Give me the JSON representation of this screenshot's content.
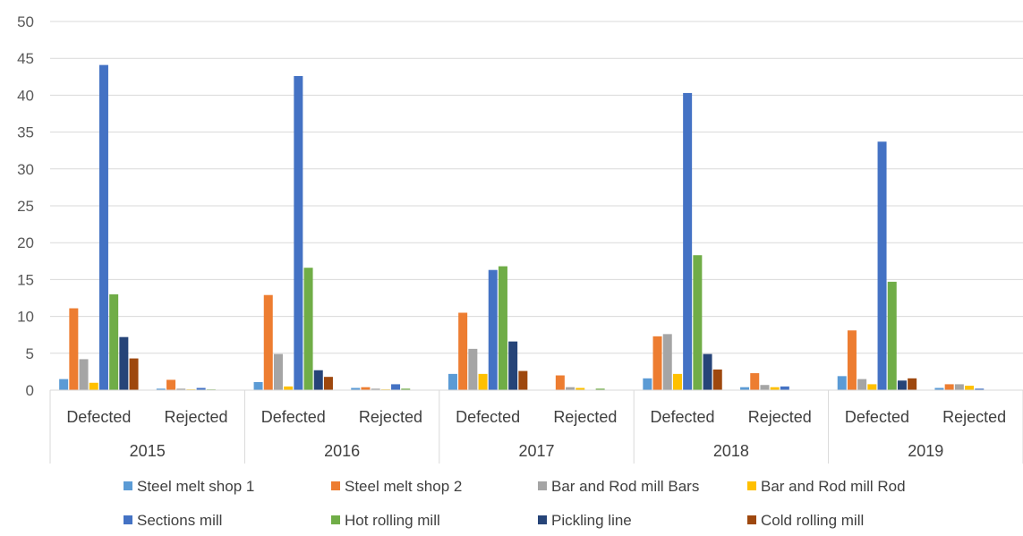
{
  "chart_data": {
    "type": "bar",
    "title": "",
    "xlabel": "",
    "ylabel": "",
    "ylim": [
      0,
      50
    ],
    "yticks": [
      "0",
      "5",
      "10",
      "15",
      "20",
      "25",
      "30",
      "35",
      "40",
      "45",
      "50"
    ],
    "grid": true,
    "legend_position": "bottom",
    "groups": [
      "2015",
      "2016",
      "2017",
      "2018",
      "2019"
    ],
    "subcategories": [
      "Defected",
      "Rejected"
    ],
    "categories": [
      "2015 Defected",
      "2015 Rejected",
      "2016 Defected",
      "2016 Rejected",
      "2017 Defected",
      "2017 Rejected",
      "2018 Defected",
      "2018 Rejected",
      "2019 Defected",
      "2019 Rejected"
    ],
    "series": [
      {
        "name": "Steel melt shop 1",
        "color": "#5B9BD5",
        "values": [
          1.5,
          0.2,
          1.1,
          0.3,
          2.2,
          0.0,
          1.6,
          0.4,
          1.9,
          0.3
        ]
      },
      {
        "name": "Steel melt shop 2",
        "color": "#ED7D31",
        "values": [
          11.1,
          1.4,
          12.9,
          0.4,
          10.5,
          2.0,
          7.3,
          2.3,
          8.1,
          0.8
        ]
      },
      {
        "name": "Bar and Rod mill Bars",
        "color": "#A5A5A5",
        "values": [
          4.2,
          0.2,
          4.9,
          0.2,
          5.6,
          0.4,
          7.6,
          0.7,
          1.5,
          0.8
        ]
      },
      {
        "name": "Bar and Rod mill Rod",
        "color": "#FFC000",
        "values": [
          1.0,
          0.1,
          0.5,
          0.1,
          2.2,
          0.3,
          2.2,
          0.4,
          0.8,
          0.6
        ]
      },
      {
        "name": "Sections mill",
        "color": "#4472C4",
        "values": [
          44.1,
          0.3,
          42.6,
          0.8,
          16.3,
          0.0,
          40.3,
          0.5,
          33.7,
          0.2
        ]
      },
      {
        "name": "Hot rolling mill",
        "color": "#70AD47",
        "values": [
          13.0,
          0.1,
          16.6,
          0.2,
          16.8,
          0.2,
          18.3,
          0.0,
          14.7,
          0.0
        ]
      },
      {
        "name": "Pickling line",
        "color": "#264478",
        "values": [
          7.2,
          0.0,
          2.7,
          0.0,
          6.6,
          0.0,
          4.9,
          0.0,
          1.3,
          0.0
        ]
      },
      {
        "name": "Cold rolling mill",
        "color": "#9E480E",
        "values": [
          4.3,
          0.0,
          1.8,
          0.0,
          2.6,
          0.0,
          2.8,
          0.0,
          1.6,
          0.0
        ]
      }
    ]
  }
}
